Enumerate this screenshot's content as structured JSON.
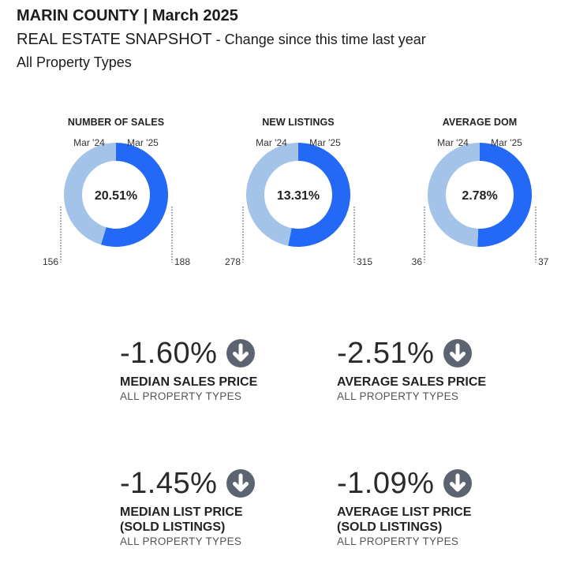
{
  "header": {
    "title": "MARIN COUNTY | March 2025",
    "subtitle_main": "REAL ESTATE SNAPSHOT",
    "subtitle_suffix": "- Change since this time last year",
    "property_type": "All Property Types"
  },
  "colors": {
    "prior_year": "#a3c3e8",
    "current_year": "#2369f6",
    "arrow": "#5b6470"
  },
  "chart_data": [
    {
      "type": "pie",
      "title": "NUMBER OF SALES",
      "center_label": "20.51%",
      "categories": [
        "Mar '24",
        "Mar '25"
      ],
      "values": [
        156,
        188
      ]
    },
    {
      "type": "pie",
      "title": "NEW LISTINGS",
      "center_label": "13.31%",
      "categories": [
        "Mar '24",
        "Mar '25"
      ],
      "values": [
        278,
        315
      ]
    },
    {
      "type": "pie",
      "title": "AVERAGE DOM",
      "center_label": "2.78%",
      "categories": [
        "Mar '24",
        "Mar '25"
      ],
      "values": [
        36,
        37
      ]
    }
  ],
  "metrics": [
    {
      "value": "-1.60%",
      "label": "MEDIAN SALES PRICE",
      "label2": "",
      "note": "ALL PROPERTY TYPES",
      "icon": "arrow-down-circle-icon"
    },
    {
      "value": "-2.51%",
      "label": "AVERAGE SALES PRICE",
      "label2": "",
      "note": "ALL PROPERTY TYPES",
      "icon": "arrow-down-circle-icon"
    },
    {
      "value": "-1.45%",
      "label": "MEDIAN LIST PRICE",
      "label2": "(SOLD LISTINGS)",
      "note": "ALL PROPERTY TYPES",
      "icon": "arrow-down-circle-icon"
    },
    {
      "value": "-1.09%",
      "label": "AVERAGE LIST PRICE",
      "label2": "(SOLD LISTINGS)",
      "note": "ALL PROPERTY TYPES",
      "icon": "arrow-down-circle-icon"
    }
  ]
}
